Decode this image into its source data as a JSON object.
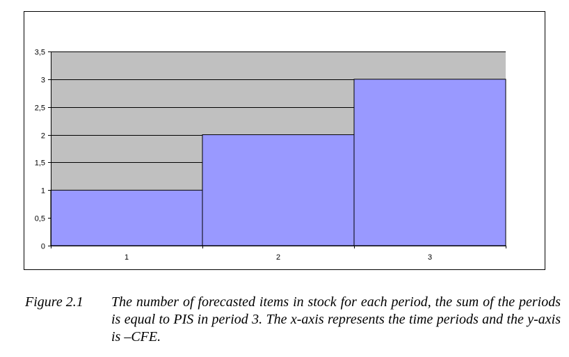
{
  "chart_data": {
    "type": "bar",
    "categories": [
      "1",
      "2",
      "3"
    ],
    "values": [
      1,
      2,
      3
    ],
    "ylim": [
      0,
      3.5
    ],
    "yticks": [
      "0",
      "0,5",
      "1",
      "1,5",
      "2",
      "2,5",
      "3",
      "3,5"
    ],
    "ytick_values": [
      0,
      0.5,
      1,
      1.5,
      2,
      2.5,
      3,
      3.5
    ],
    "grid": true,
    "bar_gap": 0,
    "colors": {
      "bar_fill": "#9999ff",
      "plot_background": "#c0c0c0",
      "gridline": "#000000",
      "frame": "#000000"
    }
  },
  "caption": {
    "label": "Figure 2.1",
    "text": "The number of forecasted items in stock for each period, the sum of the periods is equal to PIS in period 3. The x-axis represents the time periods and the y-axis is –CFE."
  }
}
